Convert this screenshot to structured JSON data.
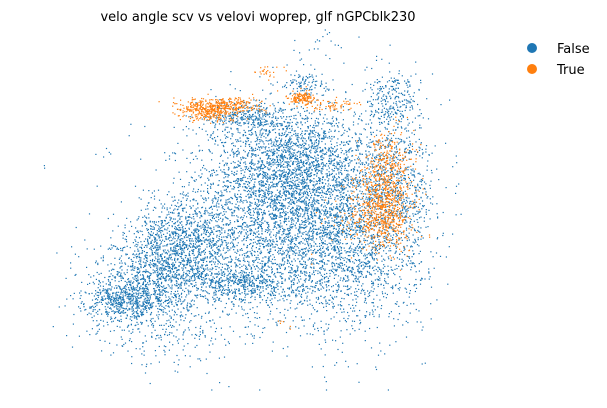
{
  "chart_data": {
    "type": "scatter",
    "title": "velo angle scv vs velovi woprep, glf nGPCblk230",
    "xlabel": "",
    "ylabel": "",
    "axes_visible": false,
    "grid": false,
    "legend_placement": "top-right, outside plot",
    "xlim": [
      0,
      100
    ],
    "ylim": [
      0,
      100
    ],
    "point_size": "very small",
    "categories": [
      "False",
      "True"
    ],
    "colors": {
      "False": "#1f77b4",
      "True": "#ff7f0e"
    },
    "series": [
      {
        "name": "False",
        "color": "#1f77b4",
        "clusters": [
          {
            "cx": 55,
            "cy": 50,
            "sx": 10,
            "sy": 14,
            "n": 3000
          },
          {
            "cx": 58,
            "cy": 63,
            "sx": 9,
            "sy": 8,
            "n": 1400
          },
          {
            "cx": 70,
            "cy": 40,
            "sx": 8,
            "sy": 12,
            "n": 1500
          },
          {
            "cx": 80,
            "cy": 58,
            "sx": 4,
            "sy": 10,
            "n": 600
          },
          {
            "cx": 79,
            "cy": 80,
            "sx": 3,
            "sy": 4,
            "n": 250
          },
          {
            "cx": 47,
            "cy": 76,
            "sx": 4,
            "sy": 2,
            "n": 250
          },
          {
            "cx": 34,
            "cy": 42,
            "sx": 6,
            "sy": 6,
            "n": 900
          },
          {
            "cx": 28,
            "cy": 33,
            "sx": 7,
            "sy": 5,
            "n": 800
          },
          {
            "cx": 22,
            "cy": 25,
            "sx": 5,
            "sy": 3,
            "n": 700
          },
          {
            "cx": 46,
            "cy": 30,
            "sx": 7,
            "sy": 3,
            "n": 600
          },
          {
            "cx": 29,
            "cy": 16,
            "sx": 9,
            "sy": 5,
            "n": 250
          },
          {
            "cx": 60,
            "cy": 85,
            "sx": 2,
            "sy": 1.5,
            "n": 80
          },
          {
            "cx": 63,
            "cy": 95,
            "sx": 4,
            "sy": 3,
            "n": 25
          },
          {
            "cx": 20,
            "cy": 67,
            "sx": 3,
            "sy": 3,
            "n": 8
          },
          {
            "cx": 4,
            "cy": 62,
            "sx": 0.5,
            "sy": 0.5,
            "n": 2
          }
        ]
      },
      {
        "name": "True",
        "color": "#ff7f0e",
        "clusters": [
          {
            "cx": 77,
            "cy": 52,
            "sx": 3,
            "sy": 6,
            "n": 700
          },
          {
            "cx": 74,
            "cy": 46,
            "sx": 5,
            "sy": 4,
            "n": 150
          },
          {
            "cx": 78,
            "cy": 65,
            "sx": 2.5,
            "sy": 4,
            "n": 150
          },
          {
            "cx": 39,
            "cy": 78,
            "sx": 3,
            "sy": 1.5,
            "n": 400
          },
          {
            "cx": 45,
            "cy": 79,
            "sx": 3,
            "sy": 1.2,
            "n": 150
          },
          {
            "cx": 59,
            "cy": 81,
            "sx": 1.5,
            "sy": 1,
            "n": 150
          },
          {
            "cx": 66,
            "cy": 79,
            "sx": 3,
            "sy": 1,
            "n": 60
          },
          {
            "cx": 52,
            "cy": 88,
            "sx": 1.5,
            "sy": 1,
            "n": 25
          },
          {
            "cx": 55,
            "cy": 18,
            "sx": 1,
            "sy": 1,
            "n": 6
          }
        ]
      }
    ]
  }
}
